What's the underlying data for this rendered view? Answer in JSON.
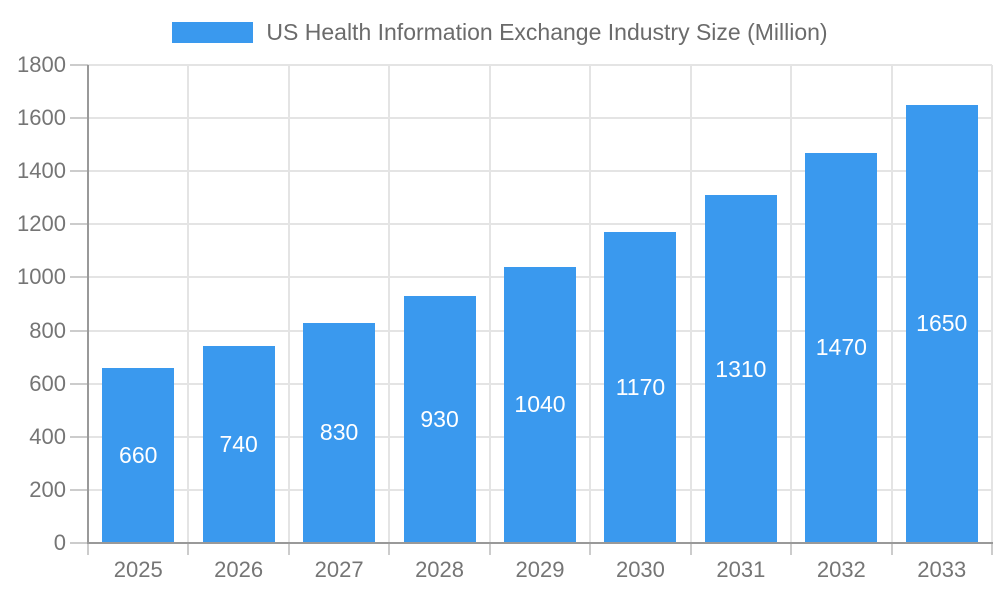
{
  "chart_data": {
    "type": "bar",
    "title": "US Health Information Exchange Industry Size (Million)",
    "categories": [
      "2025",
      "2026",
      "2027",
      "2028",
      "2029",
      "2030",
      "2031",
      "2032",
      "2033"
    ],
    "values": [
      660,
      740,
      830,
      930,
      1040,
      1170,
      1310,
      1470,
      1650
    ],
    "xlabel": "",
    "ylabel": "",
    "ylim": [
      0,
      1800
    ],
    "ytick_step": 200,
    "yticks": [
      0,
      200,
      400,
      600,
      800,
      1000,
      1200,
      1400,
      1600,
      1800
    ],
    "grid": true,
    "legend_position": "top",
    "bar_labels_inside": true,
    "colors": {
      "bar": "#3a99ee",
      "bar_label": "#ffffff",
      "axis_text": "#757575",
      "legend_text": "#6b6b6b",
      "gridline": "#e4e4e4",
      "tick": "#cccccc",
      "axis_line": "#999999",
      "background": "#ffffff"
    }
  }
}
